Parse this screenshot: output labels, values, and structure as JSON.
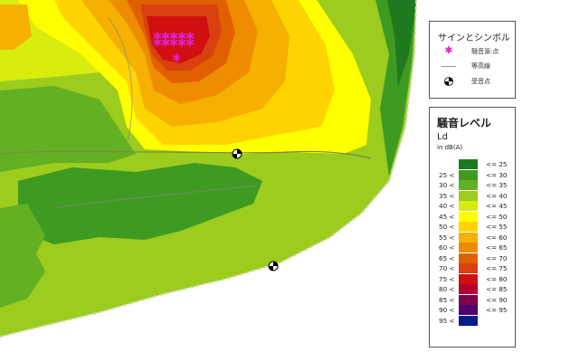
{
  "symbols": {
    "title": "サインとシンボル",
    "items": [
      {
        "label": "騒音源:点",
        "icon": "asterisk-icon",
        "color": "#e020d0"
      },
      {
        "label": "等高線",
        "icon": "line-icon",
        "color": "#999999"
      },
      {
        "label": "受音点",
        "icon": "receiver-icon",
        "color": "#000000"
      }
    ]
  },
  "levels": {
    "title": "騒音レベル",
    "metric": "Ld",
    "unit": "in dB(A)",
    "rows": [
      {
        "lo": "",
        "hi": "<= 25",
        "color": "#1f7a1f"
      },
      {
        "lo": "25 <",
        "hi": "<= 30",
        "color": "#3f9a22"
      },
      {
        "lo": "30 <",
        "hi": "<= 35",
        "color": "#63b022"
      },
      {
        "lo": "35 <",
        "hi": "<= 40",
        "color": "#9bcc1e"
      },
      {
        "lo": "40 <",
        "hi": "<= 45",
        "color": "#d9ec10"
      },
      {
        "lo": "45 <",
        "hi": "<= 50",
        "color": "#ffff00"
      },
      {
        "lo": "50 <",
        "hi": "<= 55",
        "color": "#ffd400"
      },
      {
        "lo": "55 <",
        "hi": "<= 60",
        "color": "#f5b000"
      },
      {
        "lo": "60 <",
        "hi": "<= 65",
        "color": "#ee8c00"
      },
      {
        "lo": "65 <",
        "hi": "<= 70",
        "color": "#e06000"
      },
      {
        "lo": "70 <",
        "hi": "<= 75",
        "color": "#d84010"
      },
      {
        "lo": "75 <",
        "hi": "<= 80",
        "color": "#d01010"
      },
      {
        "lo": "80 <",
        "hi": "<= 85",
        "color": "#b00030"
      },
      {
        "lo": "85 <",
        "hi": "<= 90",
        "color": "#80004c"
      },
      {
        "lo": "90 <",
        "hi": "<= 95",
        "color": "#500070"
      },
      {
        "lo": "95 <",
        "hi": "",
        "color": "#0c1a8c"
      }
    ]
  },
  "map": {
    "source_points": 11,
    "receiver_points": 2
  }
}
